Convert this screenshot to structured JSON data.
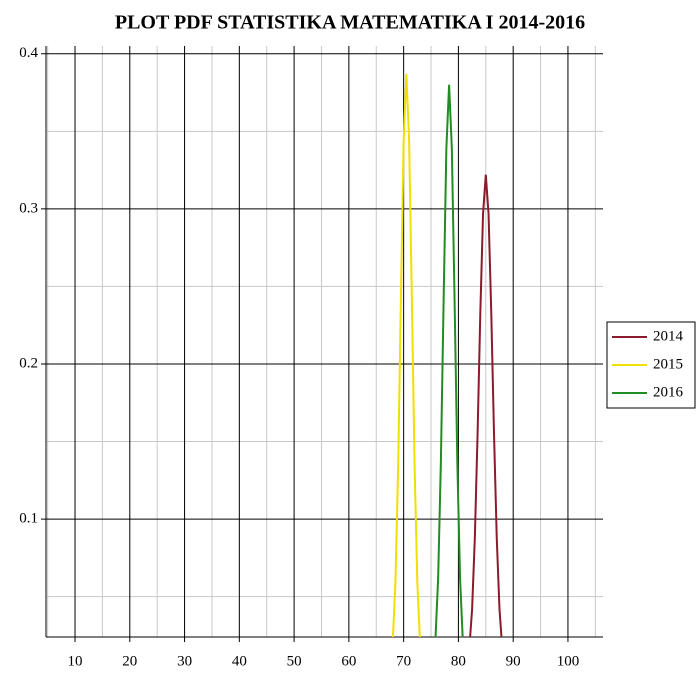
{
  "chart_data": {
    "type": "line",
    "title": "PLOT PDF STATISTIKA MATEMATIKA I 2014-2016",
    "series": [
      {
        "name": "2014",
        "color": "#8b1a2a",
        "x": [
          82,
          82.5,
          83,
          83.5,
          84,
          84.5,
          85,
          85.5,
          86,
          86.5,
          87,
          87.5,
          88
        ],
        "values": [
          0.017,
          0.042,
          0.088,
          0.155,
          0.233,
          0.297,
          0.322,
          0.297,
          0.233,
          0.155,
          0.088,
          0.042,
          0.017
        ]
      },
      {
        "name": "2015",
        "color": "#f0e000",
        "x": [
          68,
          68.5,
          69,
          69.5,
          70,
          70.5,
          71,
          71.5,
          72,
          72.5,
          73
        ],
        "values": [
          0.02,
          0.059,
          0.134,
          0.242,
          0.344,
          0.387,
          0.344,
          0.242,
          0.134,
          0.059,
          0.02
        ]
      },
      {
        "name": "2016",
        "color": "#228b22",
        "x": [
          75.8,
          76.3,
          76.8,
          77.3,
          77.8,
          78.3,
          78.8,
          79.3,
          79.8,
          80.3,
          80.8
        ],
        "values": [
          0.022,
          0.062,
          0.137,
          0.241,
          0.339,
          0.38,
          0.339,
          0.241,
          0.137,
          0.062,
          0.022
        ]
      }
    ],
    "xlim": [
      4.7,
      106.4
    ],
    "ylim": [
      0.024,
      0.405
    ],
    "xticks": [
      10,
      20,
      30,
      40,
      50,
      60,
      70,
      80,
      90,
      100
    ],
    "yticks": [
      0.1,
      0.2,
      0.3,
      0.4
    ],
    "xminorticks": [
      5,
      15,
      25,
      35,
      45,
      55,
      65,
      75,
      85,
      95,
      105
    ],
    "yminorticks": [
      0.05,
      0.15,
      0.25,
      0.35
    ],
    "grid": true,
    "legend": "right"
  }
}
